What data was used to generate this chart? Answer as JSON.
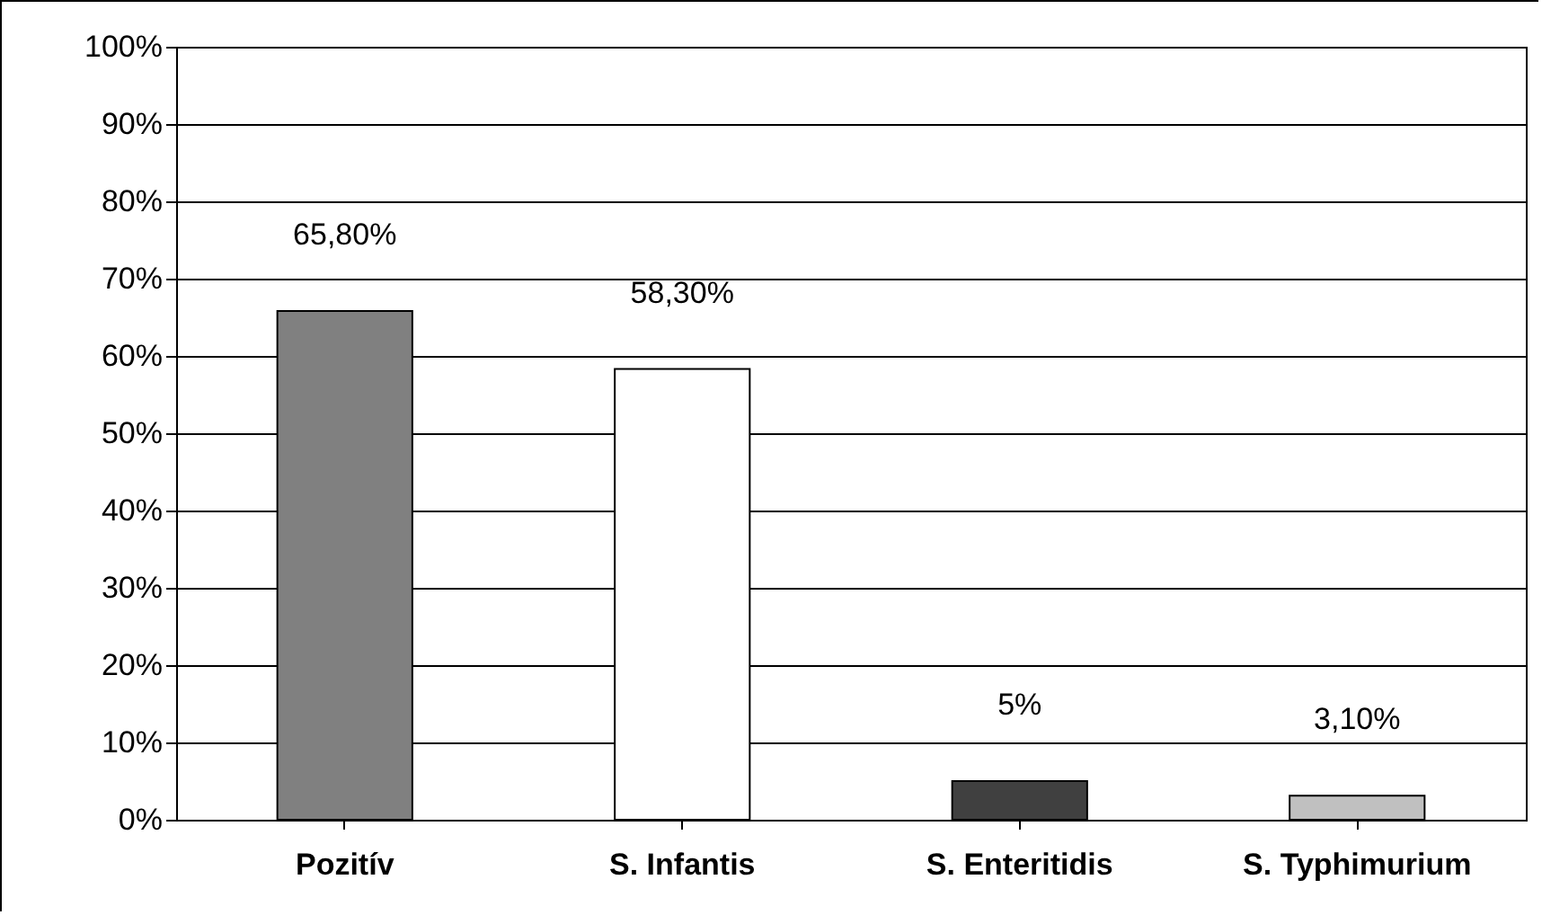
{
  "chart_data": {
    "type": "bar",
    "categories": [
      "Pozitív",
      "S. Infantis",
      "S. Enteritidis",
      "S. Typhimurium"
    ],
    "values": [
      65.8,
      58.3,
      5,
      3.1
    ],
    "colors": [
      "#808080",
      "#ffffff",
      "#404040",
      "#c0c0c0"
    ],
    "value_labels": [
      "65,80%",
      "58,30%",
      "5%",
      "3,10%"
    ],
    "ylim": [
      0,
      100
    ],
    "yticks": [
      {
        "value": 0,
        "label": "0%"
      },
      {
        "value": 10,
        "label": "10%"
      },
      {
        "value": 20,
        "label": "20%"
      },
      {
        "value": 30,
        "label": "30%"
      },
      {
        "value": 40,
        "label": "40%"
      },
      {
        "value": 50,
        "label": "50%"
      },
      {
        "value": 60,
        "label": "60%"
      },
      {
        "value": 70,
        "label": "70%"
      },
      {
        "value": 80,
        "label": "80%"
      },
      {
        "value": 90,
        "label": "90%"
      },
      {
        "value": 100,
        "label": "100%"
      }
    ],
    "grid": "y"
  }
}
